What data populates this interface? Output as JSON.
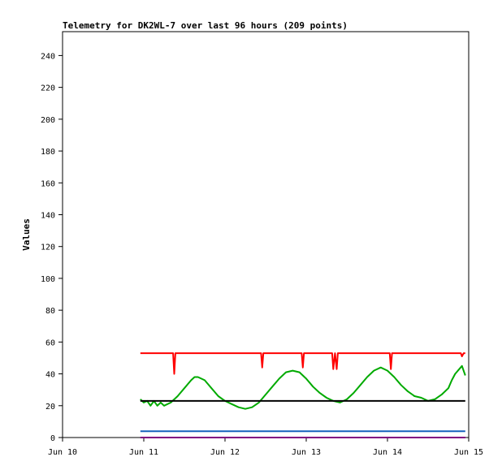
{
  "chart_data": {
    "type": "line",
    "title": "Telemetry for DK2WL-7 over last 96 hours (209 points)",
    "xlabel": "",
    "ylabel": "Values",
    "ylim": [
      0,
      255
    ],
    "yticks": [
      0,
      20,
      40,
      60,
      80,
      100,
      120,
      140,
      160,
      180,
      200,
      220,
      240
    ],
    "xlim": [
      "Jun 10 00:00",
      "Jun 15 00:00"
    ],
    "xticks": [
      "Jun 10",
      "Jun 11",
      "Jun 12",
      "Jun 13",
      "Jun 14",
      "Jun 15"
    ],
    "grid": false,
    "legend": "none",
    "series": [
      {
        "color": "#ff0000",
        "x": [
          "Jun 10 23:00",
          "Jun 11 08:00",
          "Jun 11 08:40",
          "Jun 11 09:00",
          "Jun 11 09:20",
          "Jun 11 10:00",
          "Jun 12 09:00",
          "Jun 12 10:00",
          "Jun 12 10:40",
          "Jun 12 11:00",
          "Jun 12 11:20",
          "Jun 12 12:00",
          "Jun 12 21:00",
          "Jun 12 22:00",
          "Jun 12 22:40",
          "Jun 12 23:00",
          "Jun 12 23:20",
          "Jun 13 00:00",
          "Jun 13 07:00",
          "Jun 13 07:40",
          "Jun 13 08:00",
          "Jun 13 08:30",
          "Jun 13 09:00",
          "Jun 13 09:20",
          "Jun 13 10:00",
          "Jun 14 00:00",
          "Jun 14 00:40",
          "Jun 14 01:00",
          "Jun 14 01:20",
          "Jun 14 02:00",
          "Jun 14 21:00",
          "Jun 14 21:40",
          "Jun 14 22:00",
          "Jun 14 22:30",
          "Jun 14 23:00"
        ],
        "values": [
          53,
          53,
          53,
          40,
          53,
          53,
          53,
          53,
          53,
          44,
          53,
          53,
          53,
          53,
          53,
          44,
          53,
          53,
          53,
          53,
          43,
          53,
          43,
          53,
          53,
          53,
          53,
          43,
          53,
          53,
          53,
          53,
          51,
          53,
          53
        ]
      },
      {
        "color": "#00aa00",
        "x": [
          "Jun 10 23:00",
          "Jun 11 00:00",
          "Jun 11 01:00",
          "Jun 11 02:00",
          "Jun 11 03:00",
          "Jun 11 04:00",
          "Jun 11 05:00",
          "Jun 11 06:00",
          "Jun 11 08:00",
          "Jun 11 10:00",
          "Jun 11 12:00",
          "Jun 11 14:00",
          "Jun 11 15:00",
          "Jun 11 16:00",
          "Jun 11 18:00",
          "Jun 11 20:00",
          "Jun 11 22:00",
          "Jun 12 00:00",
          "Jun 12 02:00",
          "Jun 12 04:00",
          "Jun 12 06:00",
          "Jun 12 08:00",
          "Jun 12 10:00",
          "Jun 12 12:00",
          "Jun 12 14:00",
          "Jun 12 16:00",
          "Jun 12 18:00",
          "Jun 12 20:00",
          "Jun 12 22:00",
          "Jun 13 00:00",
          "Jun 13 02:00",
          "Jun 13 04:00",
          "Jun 13 06:00",
          "Jun 13 08:00",
          "Jun 13 10:00",
          "Jun 13 12:00",
          "Jun 13 14:00",
          "Jun 13 16:00",
          "Jun 13 18:00",
          "Jun 13 20:00",
          "Jun 13 22:00",
          "Jun 14 00:00",
          "Jun 14 02:00",
          "Jun 14 04:00",
          "Jun 14 06:00",
          "Jun 14 08:00",
          "Jun 14 10:00",
          "Jun 14 12:00",
          "Jun 14 14:00",
          "Jun 14 16:00",
          "Jun 14 18:00",
          "Jun 14 19:00",
          "Jun 14 20:00",
          "Jun 14 22:00",
          "Jun 14 23:00"
        ],
        "values": [
          24,
          22,
          23,
          20,
          23,
          20,
          22,
          20,
          22,
          26,
          31,
          36,
          38,
          38,
          36,
          31,
          26,
          23,
          21,
          19,
          18,
          19,
          22,
          27,
          32,
          37,
          41,
          42,
          41,
          37,
          32,
          28,
          25,
          23,
          22,
          24,
          28,
          33,
          38,
          42,
          44,
          42,
          38,
          33,
          29,
          26,
          25,
          23,
          24,
          27,
          31,
          36,
          40,
          45,
          39
        ]
      },
      {
        "color": "#000000",
        "x": [
          "Jun 10 23:00",
          "Jun 14 23:00"
        ],
        "values": [
          23,
          23
        ]
      },
      {
        "color": "#1560bd",
        "x": [
          "Jun 10 23:00",
          "Jun 14 23:00"
        ],
        "values": [
          4,
          4
        ]
      },
      {
        "color": "#800080",
        "x": [
          "Jun 10 23:00",
          "Jun 14 23:00"
        ],
        "values": [
          0,
          0
        ]
      }
    ]
  }
}
